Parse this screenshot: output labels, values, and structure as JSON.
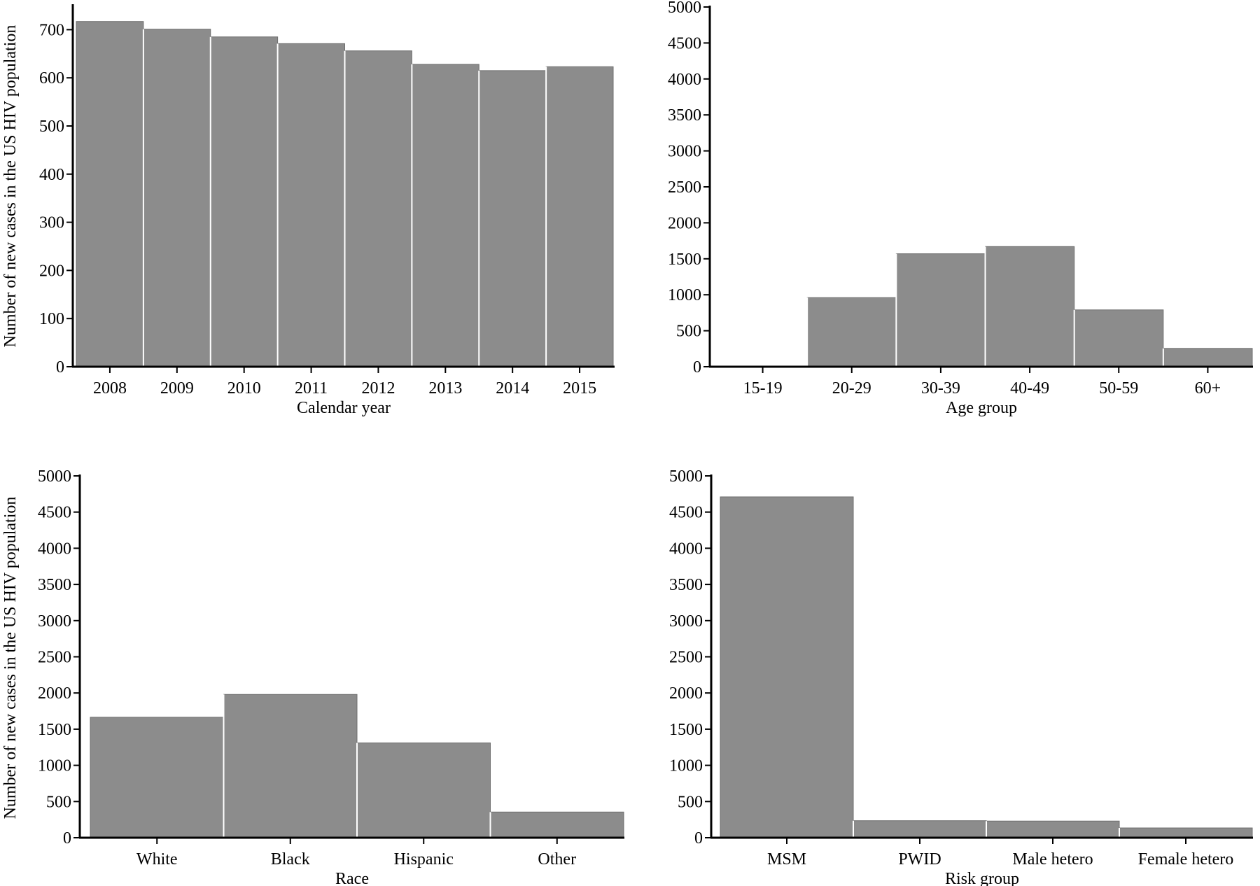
{
  "figure": {
    "bar_color": "#8c8c8c",
    "bar_stroke": "#ffffff",
    "axis_color": "#000000",
    "shared_ylabel": "Number of new cases in the US HIV population"
  },
  "chart_data": [
    {
      "type": "bar",
      "categories": [
        "2008",
        "2009",
        "2010",
        "2011",
        "2012",
        "2013",
        "2014",
        "2015"
      ],
      "values": [
        717,
        701,
        685,
        671,
        656,
        628,
        615,
        623
      ],
      "xlabel": "Calendar year",
      "ylabel": "Number of new cases in the US HIV population",
      "ylim": [
        0,
        750
      ],
      "yticks": [
        0,
        100,
        200,
        300,
        400,
        500,
        600,
        700
      ],
      "grid": false
    },
    {
      "type": "bar",
      "categories": [
        "15-19",
        "20-29",
        "30-39",
        "40-49",
        "50-59",
        "60+"
      ],
      "values": [
        0,
        960,
        1570,
        1670,
        790,
        255
      ],
      "xlabel": "Age group",
      "ylabel": "",
      "ylim": [
        0,
        5000
      ],
      "yticks": [
        0,
        500,
        1000,
        1500,
        2000,
        2500,
        3000,
        3500,
        4000,
        4500,
        5000
      ],
      "grid": false
    },
    {
      "type": "bar",
      "categories": [
        "White",
        "Black",
        "Hispanic",
        "Other"
      ],
      "values": [
        1665,
        1980,
        1310,
        355
      ],
      "xlabel": "Race",
      "ylabel": "Number of new cases in the US HIV population",
      "ylim": [
        0,
        5000
      ],
      "yticks": [
        0,
        500,
        1000,
        1500,
        2000,
        2500,
        3000,
        3500,
        4000,
        4500,
        5000
      ],
      "grid": false
    },
    {
      "type": "bar",
      "categories": [
        "MSM",
        "PWID",
        "Male hetero",
        "Female hetero"
      ],
      "values": [
        4710,
        235,
        230,
        135
      ],
      "xlabel": "Risk group",
      "ylabel": "",
      "ylim": [
        0,
        5000
      ],
      "yticks": [
        0,
        500,
        1000,
        1500,
        2000,
        2500,
        3000,
        3500,
        4000,
        4500,
        5000
      ],
      "grid": false
    }
  ]
}
